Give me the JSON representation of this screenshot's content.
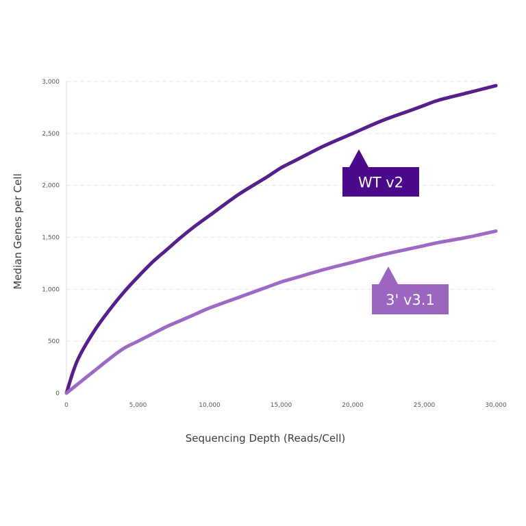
{
  "chart_data": {
    "type": "line",
    "title": "",
    "xlabel": "Sequencing Depth (Reads/Cell)",
    "ylabel": "Median Genes per Cell",
    "xlim": [
      0,
      30000
    ],
    "ylim": [
      0,
      3000
    ],
    "grid": "horizontal-dashed",
    "x_ticks": [
      0,
      5000,
      10000,
      15000,
      20000,
      25000,
      30000
    ],
    "x_tick_labels": [
      "0",
      "5,000",
      "10,000",
      "15,000",
      "20,000",
      "25,000",
      "30,000"
    ],
    "y_ticks": [
      0,
      500,
      1000,
      1500,
      2000,
      2500,
      3000
    ],
    "y_tick_labels": [
      "0",
      "500",
      "1,000",
      "1,500",
      "2,000",
      "2,500",
      "3,000"
    ],
    "series": [
      {
        "name": "WT v2",
        "color": "#55208a",
        "label_bg": "#4b0a8c",
        "x": [
          0,
          500,
          1000,
          2000,
          3000,
          4000,
          5000,
          6000,
          7000,
          8000,
          9000,
          10000,
          12000,
          14000,
          15000,
          16000,
          18000,
          20000,
          22000,
          24000,
          25000,
          26000,
          28000,
          30000
        ],
        "values": [
          0,
          220,
          380,
          610,
          800,
          970,
          1120,
          1260,
          1380,
          1500,
          1610,
          1710,
          1910,
          2080,
          2170,
          2240,
          2380,
          2500,
          2620,
          2720,
          2770,
          2820,
          2890,
          2960
        ]
      },
      {
        "name": "3' v3.1",
        "color": "#9c69c4",
        "label_bg": "#9b65c1",
        "x": [
          0,
          1000,
          2000,
          3000,
          4000,
          5000,
          6000,
          7000,
          8000,
          9000,
          10000,
          12000,
          14000,
          15000,
          16000,
          18000,
          20000,
          22000,
          24000,
          25000,
          26000,
          28000,
          30000
        ],
        "values": [
          0,
          110,
          220,
          330,
          430,
          500,
          570,
          640,
          700,
          760,
          820,
          920,
          1020,
          1070,
          1110,
          1190,
          1260,
          1330,
          1390,
          1420,
          1450,
          1500,
          1560
        ]
      }
    ],
    "annotations": [
      {
        "text": "WT v2",
        "series": 0
      },
      {
        "text": "3' v3.1",
        "series": 1
      }
    ]
  }
}
